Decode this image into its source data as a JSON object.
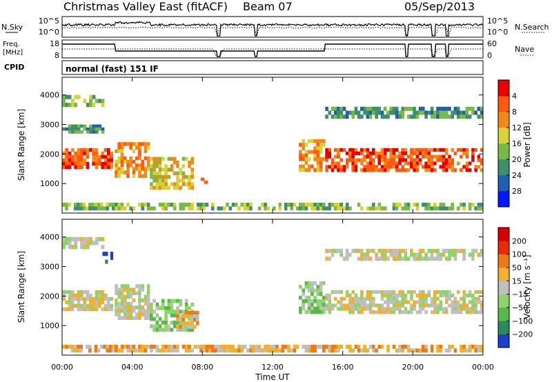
{
  "header": {
    "station": "Christmas Valley East (fitACF)",
    "beam": "Beam 07",
    "date": "05/Sep/2013"
  },
  "sky_panel": {
    "left_label": "N.Sky",
    "left_ticks": [
      "10^5",
      "10^0"
    ],
    "right_label": "N.Search",
    "right_ticks": [
      "10^5",
      "10^0"
    ]
  },
  "freq_panel": {
    "left_label_1": "Freq.",
    "left_label_2": "[MHz]",
    "left_ticks": [
      "18",
      "8"
    ],
    "right_label": "Nave",
    "right_ticks": [
      "60",
      "0"
    ]
  },
  "cpid": {
    "label": "CPID",
    "value": "normal (fast) 151 IF"
  },
  "chart_data": [
    {
      "type": "heatmap",
      "name": "power",
      "ylabel": "Slant Range [km]",
      "ylim": [
        0,
        4600
      ],
      "y_ticks": [
        "1000",
        "2000",
        "3000",
        "4000"
      ],
      "colorbar_label": "Power [dB]",
      "colorbar_ticks": [
        "4",
        "8",
        "12",
        "16",
        "20",
        "24",
        "28"
      ],
      "colors": [
        "#0018ff",
        "#1f5fb0",
        "#3f8f6a",
        "#78b948",
        "#d7d238",
        "#f08a17",
        "#ff5a10",
        "#e80000"
      ],
      "regions": [
        {
          "t0": 0.0,
          "t1": 2.9,
          "r0": 1500,
          "r1": 2200,
          "level": 6
        },
        {
          "t0": 0.0,
          "t1": 2.4,
          "r0": 3600,
          "r1": 4000,
          "level": 3
        },
        {
          "t0": 0.0,
          "t1": 2.4,
          "r0": 2700,
          "r1": 3000,
          "level": 2
        },
        {
          "t0": 3.0,
          "t1": 5.0,
          "r0": 1200,
          "r1": 2400,
          "level": 5
        },
        {
          "t0": 5.0,
          "t1": 7.5,
          "r0": 800,
          "r1": 1900,
          "level": 4
        },
        {
          "t0": 7.9,
          "t1": 8.3,
          "r0": 1000,
          "r1": 1200,
          "level": 6
        },
        {
          "t0": 13.5,
          "t1": 15.0,
          "r0": 1400,
          "r1": 2500,
          "level": 5
        },
        {
          "t0": 15.0,
          "t1": 24.0,
          "r0": 1400,
          "r1": 2200,
          "level": 6
        },
        {
          "t0": 15.0,
          "t1": 24.0,
          "r0": 3200,
          "r1": 3600,
          "level": 2
        },
        {
          "t0": 0.0,
          "t1": 24.0,
          "r0": 100,
          "r1": 350,
          "level": 3
        }
      ]
    },
    {
      "type": "heatmap",
      "name": "velocity",
      "xlabel": "Time UT",
      "ylabel": "Slant Range [km]",
      "ylim": [
        0,
        4600
      ],
      "y_ticks": [
        "1000",
        "2000",
        "3000",
        "4000"
      ],
      "x_ticks": [
        "00:00",
        "04:00",
        "08:00",
        "12:00",
        "16:00",
        "20:00",
        "00:00"
      ],
      "colorbar_label": "Velocity [m s⁻¹]",
      "colorbar_ticks": [
        "200",
        "100",
        "50",
        "15",
        "−15",
        "−50",
        "−100",
        "−200"
      ],
      "colors": [
        "#1a3fc9",
        "#2c8a5a",
        "#58b848",
        "#8ed46a",
        "#bfbfbf",
        "#f0b030",
        "#f07818",
        "#e82a0a",
        "#d80000"
      ],
      "regions": [
        {
          "t0": 0.0,
          "t1": 2.9,
          "r0": 1500,
          "r1": 2200,
          "level": 4
        },
        {
          "t0": 0.0,
          "t1": 2.4,
          "r0": 3600,
          "r1": 4000,
          "level": 4
        },
        {
          "t0": 2.3,
          "t1": 2.9,
          "r0": 3100,
          "r1": 3500,
          "level": 0
        },
        {
          "t0": 3.0,
          "t1": 5.0,
          "r0": 1200,
          "r1": 2400,
          "level": 4
        },
        {
          "t0": 5.0,
          "t1": 7.5,
          "r0": 800,
          "r1": 1900,
          "level": 3
        },
        {
          "t0": 6.5,
          "t1": 7.8,
          "r0": 900,
          "r1": 1500,
          "level": 5
        },
        {
          "t0": 13.5,
          "t1": 15.0,
          "r0": 1400,
          "r1": 2500,
          "level": 3
        },
        {
          "t0": 15.0,
          "t1": 24.0,
          "r0": 1400,
          "r1": 2200,
          "level": 4
        },
        {
          "t0": 15.0,
          "t1": 24.0,
          "r0": 3200,
          "r1": 3600,
          "level": 4
        },
        {
          "t0": 0.0,
          "t1": 24.0,
          "r0": 100,
          "r1": 350,
          "level": 5
        }
      ]
    }
  ]
}
